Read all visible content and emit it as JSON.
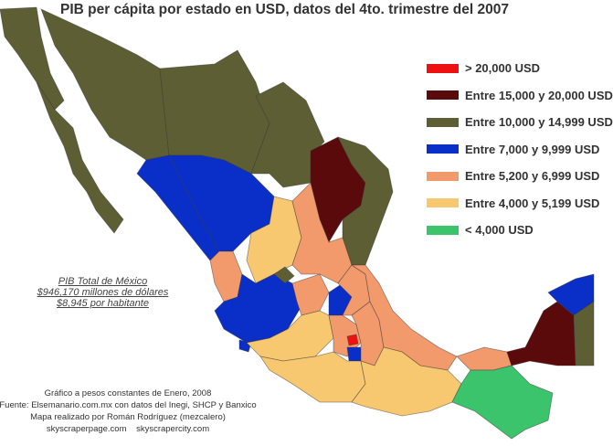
{
  "title": "PIB per cápita por estado en USD, datos del 4to. trimestre del 2007",
  "legend": [
    {
      "label": "> 20,000 USD",
      "color": "#ee1111"
    },
    {
      "label": "Entre 15,000 y 20,000 USD",
      "color": "#5a0a0a"
    },
    {
      "label": "Entre 10,000 y 14,999 USD",
      "color": "#5e5e34"
    },
    {
      "label": "Entre 7,000 y 9,999 USD",
      "color": "#0a2fc8"
    },
    {
      "label": "Entre 5,200 y 6,999 USD",
      "color": "#f39a6c"
    },
    {
      "label": "Entre 4,000 y 5,199 USD",
      "color": "#f7c870"
    },
    {
      "label": "< 4,000 USD",
      "color": "#3cc46c"
    }
  ],
  "summary": {
    "line1": "PIB Total de México",
    "line2": "$946,170 millones de dólares",
    "line3": "$8,945 por habitante"
  },
  "credits": {
    "line1": "Gráfico a pesos constantes de Enero, 2008",
    "line2": "Fuente: Elsemanario.com.mx con datos del Inegi, SHCP y Banxico",
    "line3": "Mapa realizado por Román Rodríguez (mezcalero)",
    "line4": "skyscraperpage.com    skyscrapercity.com"
  }
}
